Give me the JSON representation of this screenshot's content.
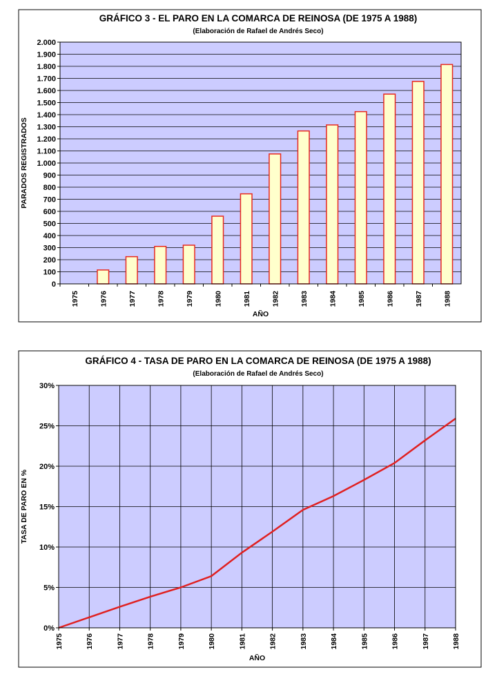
{
  "chart_data": [
    {
      "type": "bar",
      "title": "GRÁFICO 3 - EL PARO EN LA COMARCA DE REINOSA (DE 1975 A 1988)",
      "subtitle": "(Elaboración de Rafael de Andrés Seco)",
      "x_label": "AÑO",
      "y_label": "PARADOS REGISTRADOS",
      "categories": [
        "1975",
        "1976",
        "1977",
        "1978",
        "1979",
        "1980",
        "1981",
        "1982",
        "1983",
        "1984",
        "1985",
        "1986",
        "1987",
        "1988"
      ],
      "values": [
        0,
        115,
        225,
        310,
        320,
        560,
        745,
        1075,
        1265,
        1315,
        1425,
        1570,
        1675,
        1815
      ],
      "color": "#ffffcc",
      "edge_color": "#e8281e",
      "plot_background": "#ccccff",
      "ylim": [
        0,
        2000
      ],
      "yticks": [
        0,
        100,
        200,
        300,
        400,
        500,
        600,
        700,
        800,
        900,
        {
          "value": 1000,
          "label": "1.000"
        },
        {
          "value": 1100,
          "label": "1.100"
        },
        {
          "value": 1200,
          "label": "1.200"
        },
        {
          "value": 1300,
          "label": "1.300"
        },
        {
          "value": 1400,
          "label": "1.400"
        },
        {
          "value": 1500,
          "label": "1.500"
        },
        {
          "value": 1600,
          "label": "1.600"
        },
        {
          "value": 1700,
          "label": "1.700"
        },
        {
          "value": 1800,
          "label": "1.800"
        },
        {
          "value": 1900,
          "label": "1.900"
        },
        {
          "value": 2000,
          "label": "2.000"
        }
      ],
      "grid": "horizontal"
    },
    {
      "type": "line",
      "title": "GRÁFICO 4 - TASA DE PARO EN LA COMARCA DE REINOSA (DE 1975 A 1988)",
      "subtitle": "(Elaboración de Rafael de Andrés Seco)",
      "x_label": "AÑO",
      "y_label": "TASA DE PARO EN %",
      "categories": [
        "1975",
        "1976",
        "1977",
        "1978",
        "1979",
        "1980",
        "1981",
        "1982",
        "1983",
        "1984",
        "1985",
        "1986",
        "1987",
        "1988"
      ],
      "values": [
        0,
        1.3,
        2.6,
        3.85,
        5.0,
        6.4,
        9.3,
        11.9,
        14.6,
        16.3,
        18.3,
        20.4,
        23.2,
        25.9
      ],
      "color": "#e02020",
      "plot_background": "#ccccff",
      "ylim": [
        0,
        30
      ],
      "yticks": [
        {
          "value": 0,
          "label": "0%"
        },
        {
          "value": 5,
          "label": "5%"
        },
        {
          "value": 10,
          "label": "10%"
        },
        {
          "value": 15,
          "label": "15%"
        },
        {
          "value": 20,
          "label": "20%"
        },
        {
          "value": 25,
          "label": "25%"
        },
        {
          "value": 30,
          "label": "30%"
        }
      ],
      "grid": "both"
    }
  ]
}
